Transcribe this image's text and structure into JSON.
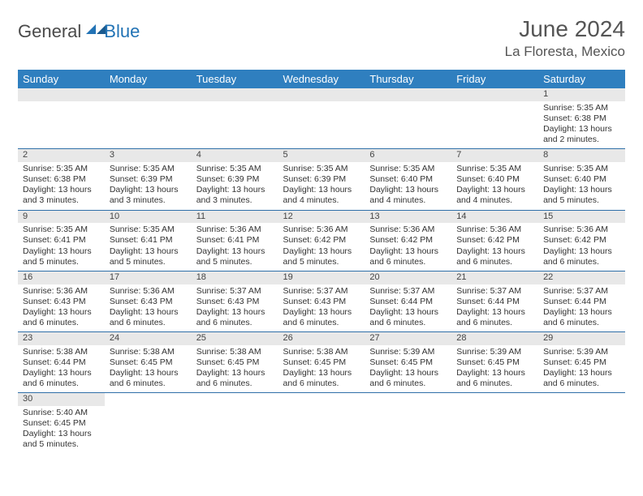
{
  "logo": {
    "general": "General",
    "blue": "Blue"
  },
  "title": "June 2024",
  "location": "La Floresta, Mexico",
  "colors": {
    "header_bg": "#2f7fbf",
    "header_text": "#ffffff",
    "daynum_bg": "#e8e8e8",
    "rule": "#2f6fa8",
    "body_text": "#333333",
    "title_text": "#555555",
    "logo_blue": "#2273b5"
  },
  "columns": [
    "Sunday",
    "Monday",
    "Tuesday",
    "Wednesday",
    "Thursday",
    "Friday",
    "Saturday"
  ],
  "weeks": [
    [
      null,
      null,
      null,
      null,
      null,
      null,
      {
        "n": "1",
        "sr": "Sunrise: 5:35 AM",
        "ss": "Sunset: 6:38 PM",
        "d1": "Daylight: 13 hours",
        "d2": "and 2 minutes."
      }
    ],
    [
      {
        "n": "2",
        "sr": "Sunrise: 5:35 AM",
        "ss": "Sunset: 6:38 PM",
        "d1": "Daylight: 13 hours",
        "d2": "and 3 minutes."
      },
      {
        "n": "3",
        "sr": "Sunrise: 5:35 AM",
        "ss": "Sunset: 6:39 PM",
        "d1": "Daylight: 13 hours",
        "d2": "and 3 minutes."
      },
      {
        "n": "4",
        "sr": "Sunrise: 5:35 AM",
        "ss": "Sunset: 6:39 PM",
        "d1": "Daylight: 13 hours",
        "d2": "and 3 minutes."
      },
      {
        "n": "5",
        "sr": "Sunrise: 5:35 AM",
        "ss": "Sunset: 6:39 PM",
        "d1": "Daylight: 13 hours",
        "d2": "and 4 minutes."
      },
      {
        "n": "6",
        "sr": "Sunrise: 5:35 AM",
        "ss": "Sunset: 6:40 PM",
        "d1": "Daylight: 13 hours",
        "d2": "and 4 minutes."
      },
      {
        "n": "7",
        "sr": "Sunrise: 5:35 AM",
        "ss": "Sunset: 6:40 PM",
        "d1": "Daylight: 13 hours",
        "d2": "and 4 minutes."
      },
      {
        "n": "8",
        "sr": "Sunrise: 5:35 AM",
        "ss": "Sunset: 6:40 PM",
        "d1": "Daylight: 13 hours",
        "d2": "and 5 minutes."
      }
    ],
    [
      {
        "n": "9",
        "sr": "Sunrise: 5:35 AM",
        "ss": "Sunset: 6:41 PM",
        "d1": "Daylight: 13 hours",
        "d2": "and 5 minutes."
      },
      {
        "n": "10",
        "sr": "Sunrise: 5:35 AM",
        "ss": "Sunset: 6:41 PM",
        "d1": "Daylight: 13 hours",
        "d2": "and 5 minutes."
      },
      {
        "n": "11",
        "sr": "Sunrise: 5:36 AM",
        "ss": "Sunset: 6:41 PM",
        "d1": "Daylight: 13 hours",
        "d2": "and 5 minutes."
      },
      {
        "n": "12",
        "sr": "Sunrise: 5:36 AM",
        "ss": "Sunset: 6:42 PM",
        "d1": "Daylight: 13 hours",
        "d2": "and 5 minutes."
      },
      {
        "n": "13",
        "sr": "Sunrise: 5:36 AM",
        "ss": "Sunset: 6:42 PM",
        "d1": "Daylight: 13 hours",
        "d2": "and 6 minutes."
      },
      {
        "n": "14",
        "sr": "Sunrise: 5:36 AM",
        "ss": "Sunset: 6:42 PM",
        "d1": "Daylight: 13 hours",
        "d2": "and 6 minutes."
      },
      {
        "n": "15",
        "sr": "Sunrise: 5:36 AM",
        "ss": "Sunset: 6:42 PM",
        "d1": "Daylight: 13 hours",
        "d2": "and 6 minutes."
      }
    ],
    [
      {
        "n": "16",
        "sr": "Sunrise: 5:36 AM",
        "ss": "Sunset: 6:43 PM",
        "d1": "Daylight: 13 hours",
        "d2": "and 6 minutes."
      },
      {
        "n": "17",
        "sr": "Sunrise: 5:36 AM",
        "ss": "Sunset: 6:43 PM",
        "d1": "Daylight: 13 hours",
        "d2": "and 6 minutes."
      },
      {
        "n": "18",
        "sr": "Sunrise: 5:37 AM",
        "ss": "Sunset: 6:43 PM",
        "d1": "Daylight: 13 hours",
        "d2": "and 6 minutes."
      },
      {
        "n": "19",
        "sr": "Sunrise: 5:37 AM",
        "ss": "Sunset: 6:43 PM",
        "d1": "Daylight: 13 hours",
        "d2": "and 6 minutes."
      },
      {
        "n": "20",
        "sr": "Sunrise: 5:37 AM",
        "ss": "Sunset: 6:44 PM",
        "d1": "Daylight: 13 hours",
        "d2": "and 6 minutes."
      },
      {
        "n": "21",
        "sr": "Sunrise: 5:37 AM",
        "ss": "Sunset: 6:44 PM",
        "d1": "Daylight: 13 hours",
        "d2": "and 6 minutes."
      },
      {
        "n": "22",
        "sr": "Sunrise: 5:37 AM",
        "ss": "Sunset: 6:44 PM",
        "d1": "Daylight: 13 hours",
        "d2": "and 6 minutes."
      }
    ],
    [
      {
        "n": "23",
        "sr": "Sunrise: 5:38 AM",
        "ss": "Sunset: 6:44 PM",
        "d1": "Daylight: 13 hours",
        "d2": "and 6 minutes."
      },
      {
        "n": "24",
        "sr": "Sunrise: 5:38 AM",
        "ss": "Sunset: 6:45 PM",
        "d1": "Daylight: 13 hours",
        "d2": "and 6 minutes."
      },
      {
        "n": "25",
        "sr": "Sunrise: 5:38 AM",
        "ss": "Sunset: 6:45 PM",
        "d1": "Daylight: 13 hours",
        "d2": "and 6 minutes."
      },
      {
        "n": "26",
        "sr": "Sunrise: 5:38 AM",
        "ss": "Sunset: 6:45 PM",
        "d1": "Daylight: 13 hours",
        "d2": "and 6 minutes."
      },
      {
        "n": "27",
        "sr": "Sunrise: 5:39 AM",
        "ss": "Sunset: 6:45 PM",
        "d1": "Daylight: 13 hours",
        "d2": "and 6 minutes."
      },
      {
        "n": "28",
        "sr": "Sunrise: 5:39 AM",
        "ss": "Sunset: 6:45 PM",
        "d1": "Daylight: 13 hours",
        "d2": "and 6 minutes."
      },
      {
        "n": "29",
        "sr": "Sunrise: 5:39 AM",
        "ss": "Sunset: 6:45 PM",
        "d1": "Daylight: 13 hours",
        "d2": "and 6 minutes."
      }
    ],
    [
      {
        "n": "30",
        "sr": "Sunrise: 5:40 AM",
        "ss": "Sunset: 6:45 PM",
        "d1": "Daylight: 13 hours",
        "d2": "and 5 minutes."
      },
      null,
      null,
      null,
      null,
      null,
      null
    ]
  ]
}
